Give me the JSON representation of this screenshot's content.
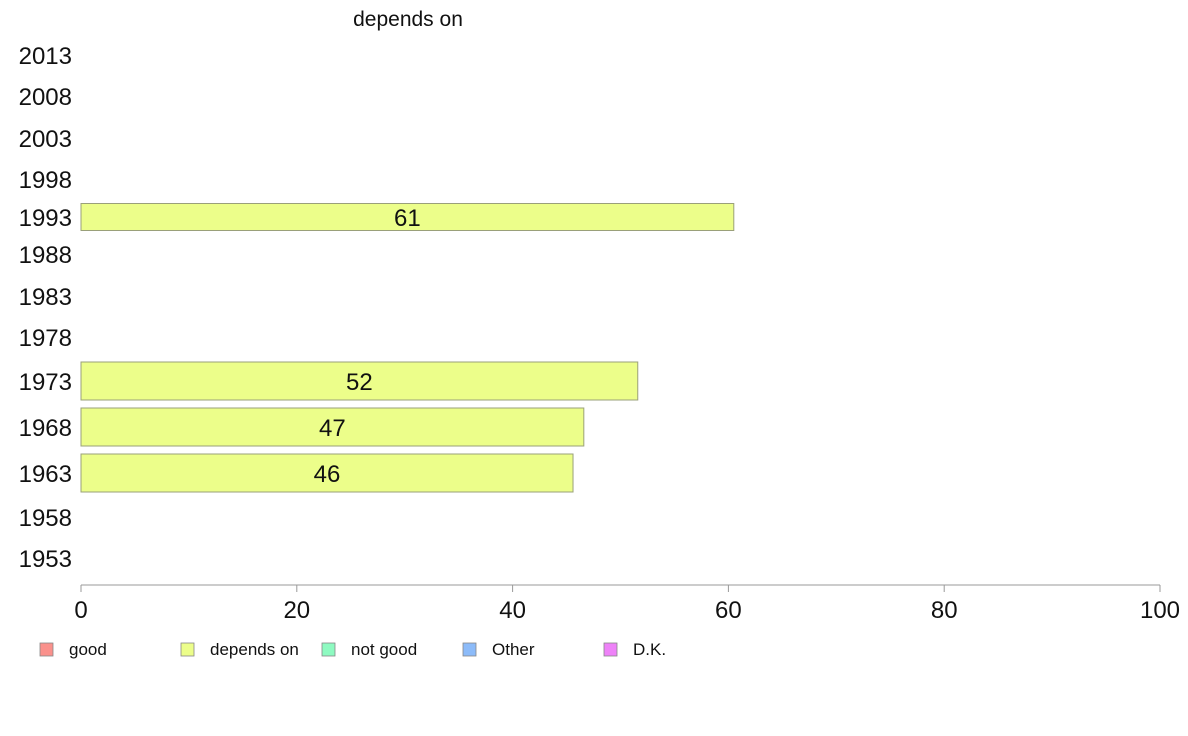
{
  "chart_data": {
    "type": "bar",
    "orientation": "horizontal",
    "title": "depends on",
    "categories": [
      "2013",
      "2008",
      "2003",
      "1998",
      "1993",
      "1988",
      "1983",
      "1978",
      "1973",
      "1968",
      "1963",
      "1958",
      "1953"
    ],
    "series": [
      {
        "name": "depends on",
        "color": "#ecfe8a",
        "values": [
          null,
          null,
          null,
          null,
          60.5,
          null,
          null,
          null,
          51.6,
          46.6,
          45.6,
          null,
          null
        ],
        "labels": [
          "",
          "",
          "",
          "",
          "61",
          "",
          "",
          "",
          "52",
          "47",
          "46",
          "",
          ""
        ]
      }
    ],
    "xlim": [
      0,
      100
    ],
    "x_ticks": [
      "0",
      "20",
      "40",
      "60",
      "80",
      "100"
    ],
    "grid": false,
    "legend": {
      "placement": "bottom",
      "items": [
        {
          "label": "good",
          "color": "#fa918c"
        },
        {
          "label": "depends on",
          "color": "#ecfe8a"
        },
        {
          "label": "not good",
          "color": "#8efac1"
        },
        {
          "label": "Other",
          "color": "#8cbbf9"
        },
        {
          "label": "D.K.",
          "color": "#ee82f8"
        }
      ]
    }
  }
}
